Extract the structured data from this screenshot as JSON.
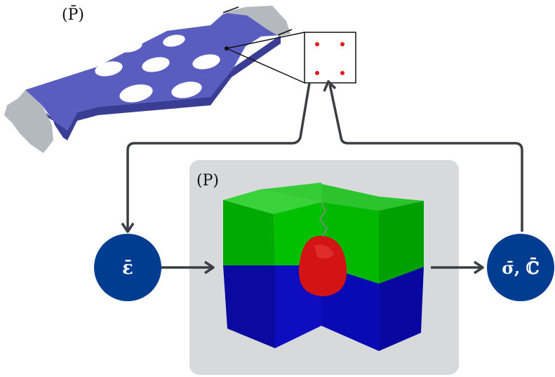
{
  "labels": {
    "macro": "(P̄)",
    "micro": "(P)"
  },
  "nodes": {
    "strain": {
      "label": "ε̄"
    },
    "stress": {
      "label": "σ̄, ℂ̄"
    }
  },
  "colors": {
    "plate": "#5a5dc0",
    "plate_side": "#3a3d94",
    "grip": "#b4b9bf",
    "panel_bg": "#d8d9db",
    "node_fill": "#003c8f",
    "arrow": "#3a3d42",
    "integration_point": "#e21a1a",
    "matrix_top": "#00b400",
    "matrix_bottom": "#0a0ab0",
    "inclusion": "#d41414"
  },
  "icons": {
    "plate": "perforated-plate-icon",
    "rve": "rve-cube-icon",
    "element": "finite-element-icon"
  },
  "integration_points": 4
}
